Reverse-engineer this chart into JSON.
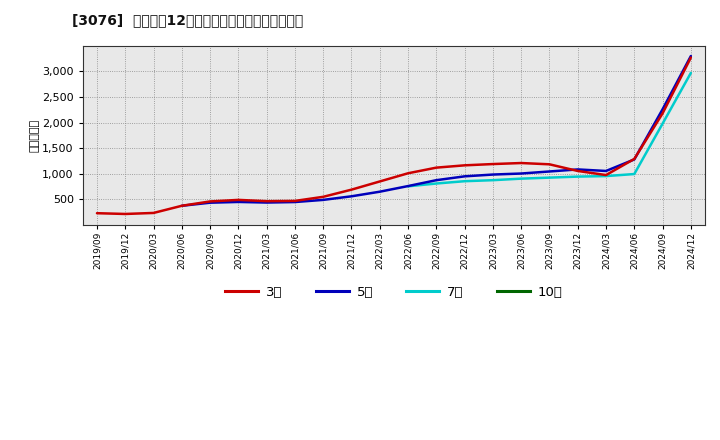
{
  "title": "[3076]  経常利益12か月移動合計の標準偏差の推移",
  "ylabel": "（百万円）",
  "background_color": "#ffffff",
  "plot_bg_color": "#e8e8e8",
  "grid_color": "#888888",
  "ylim": [
    0,
    3500
  ],
  "yticks": [
    500,
    1000,
    1500,
    2000,
    2500,
    3000
  ],
  "series": {
    "3年": {
      "color": "#cc0000",
      "x": [
        "2019/09",
        "2019/12",
        "2020/03",
        "2020/06",
        "2020/09",
        "2020/12",
        "2021/03",
        "2021/06",
        "2021/09",
        "2021/12",
        "2022/03",
        "2022/06",
        "2022/09",
        "2022/12",
        "2023/03",
        "2023/06",
        "2023/09",
        "2023/12",
        "2024/03",
        "2024/06",
        "2024/09",
        "2024/12"
      ],
      "y": [
        230,
        215,
        235,
        375,
        460,
        490,
        465,
        470,
        550,
        690,
        850,
        1010,
        1120,
        1165,
        1190,
        1210,
        1185,
        1055,
        975,
        1290,
        2180,
        3270
      ]
    },
    "5年": {
      "color": "#0000bb",
      "x": [
        "2019/09",
        "2019/12",
        "2020/03",
        "2020/06",
        "2020/09",
        "2020/12",
        "2021/03",
        "2021/06",
        "2021/09",
        "2021/12",
        "2022/03",
        "2022/06",
        "2022/09",
        "2022/12",
        "2023/03",
        "2023/06",
        "2023/09",
        "2023/12",
        "2024/03",
        "2024/06",
        "2024/09",
        "2024/12"
      ],
      "y": [
        null,
        null,
        null,
        375,
        435,
        450,
        438,
        448,
        490,
        560,
        650,
        760,
        875,
        950,
        985,
        1005,
        1045,
        1085,
        1055,
        1280,
        2260,
        3300
      ]
    },
    "7年": {
      "color": "#00cccc",
      "x": [
        "2022/06",
        "2022/09",
        "2022/12",
        "2023/03",
        "2023/06",
        "2023/09",
        "2023/12",
        "2024/03",
        "2024/06",
        "2024/09",
        "2024/12"
      ],
      "y": [
        755,
        810,
        855,
        875,
        905,
        925,
        945,
        955,
        995,
        1980,
        2970
      ]
    },
    "10年": {
      "color": "#006600",
      "x": [],
      "y": []
    }
  },
  "legend_labels": [
    "3年",
    "5年",
    "7年",
    "10年"
  ],
  "legend_colors": [
    "#cc0000",
    "#0000bb",
    "#00cccc",
    "#006600"
  ],
  "x_tick_labels": [
    "2019/09",
    "2019/12",
    "2020/03",
    "2020/06",
    "2020/09",
    "2020/12",
    "2021/03",
    "2021/06",
    "2021/09",
    "2021/12",
    "2022/03",
    "2022/06",
    "2022/09",
    "2022/12",
    "2023/03",
    "2023/06",
    "2023/09",
    "2023/12",
    "2024/03",
    "2024/06",
    "2024/09",
    "2024/12"
  ]
}
